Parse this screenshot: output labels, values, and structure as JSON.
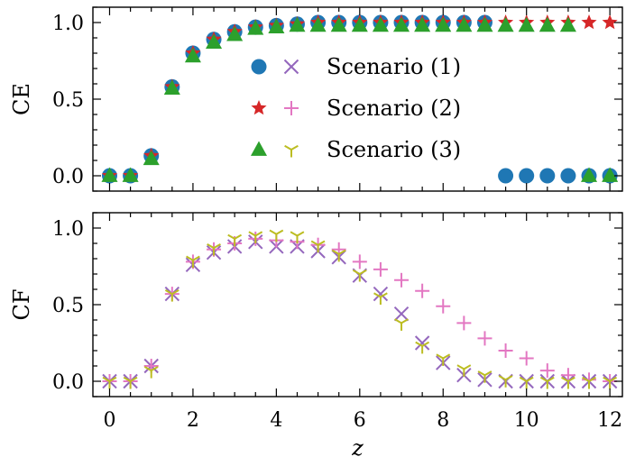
{
  "chart_data": [
    {
      "type": "scatter",
      "ylabel": "CE",
      "ylim": [
        -0.1,
        1.1
      ],
      "xlim": [
        -0.4,
        12.3
      ],
      "xticks": [
        0,
        2,
        4,
        6,
        8,
        10,
        12
      ],
      "yticks": [
        0.0,
        0.5,
        1.0
      ],
      "ytick_labels": [
        "0.0",
        "0.5",
        "1.0"
      ],
      "grid": false,
      "legend_position": "center",
      "series": [
        {
          "name": "Scenario (1)",
          "marker": "circle",
          "color": "#1f77b4",
          "x": [
            0,
            0.5,
            1,
            1.5,
            2,
            2.5,
            3,
            3.5,
            4,
            4.5,
            5,
            5.5,
            6,
            6.5,
            7,
            7.5,
            8,
            8.5,
            9,
            9.5,
            10,
            10.5,
            11,
            11.5,
            12
          ],
          "y": [
            0,
            0,
            0.13,
            0.58,
            0.8,
            0.89,
            0.94,
            0.97,
            0.98,
            0.99,
            1.0,
            1.0,
            1.0,
            1.0,
            1.0,
            1.0,
            1.0,
            1.0,
            1.0,
            0,
            0,
            0,
            0,
            0,
            0
          ]
        },
        {
          "name": "Scenario (2)",
          "marker": "star",
          "color": "#d62728",
          "x": [
            0,
            0.5,
            1,
            1.5,
            2,
            2.5,
            3,
            3.5,
            4,
            4.5,
            5,
            5.5,
            6,
            6.5,
            7,
            7.5,
            8,
            8.5,
            9,
            9.5,
            10,
            10.5,
            11,
            11.5,
            12
          ],
          "y": [
            0,
            0,
            0.13,
            0.58,
            0.8,
            0.89,
            0.94,
            0.97,
            0.98,
            0.99,
            1.0,
            1.0,
            1.0,
            1.0,
            1.0,
            1.0,
            1.0,
            1.0,
            1.0,
            1.0,
            1.0,
            1.0,
            1.0,
            1.0,
            1.0
          ]
        },
        {
          "name": "Scenario (3)",
          "marker": "triangle",
          "color": "#2ca02c",
          "x": [
            0,
            0.5,
            1,
            1.5,
            2,
            2.5,
            3,
            3.5,
            4,
            4.5,
            5,
            5.5,
            6,
            6.5,
            7,
            7.5,
            8,
            8.5,
            9,
            9.5,
            10,
            10.5,
            11,
            11.5,
            12
          ],
          "y": [
            0,
            0,
            0.11,
            0.57,
            0.78,
            0.87,
            0.92,
            0.96,
            0.97,
            0.98,
            0.98,
            0.98,
            0.98,
            0.98,
            0.98,
            0.98,
            0.98,
            0.98,
            0.98,
            0.98,
            0.98,
            0.98,
            0.98,
            0,
            0
          ]
        }
      ],
      "legend_entries": [
        {
          "label": "Scenario (1)",
          "marker1": "circle",
          "color1": "#1f77b4",
          "marker2": "x",
          "color2": "#9467bd"
        },
        {
          "label": "Scenario (2)",
          "marker1": "star",
          "color1": "#d62728",
          "marker2": "plus",
          "color2": "#e377c2"
        },
        {
          "label": "Scenario (3)",
          "marker1": "triangle",
          "color1": "#2ca02c",
          "marker2": "tri-down",
          "color2": "#bcbd22"
        }
      ]
    },
    {
      "type": "scatter",
      "ylabel": "CF",
      "xlabel": "z",
      "ylim": [
        -0.1,
        1.1
      ],
      "xlim": [
        -0.4,
        12.3
      ],
      "xticks": [
        0,
        2,
        4,
        6,
        8,
        10,
        12
      ],
      "xtick_labels": [
        "0",
        "2",
        "4",
        "6",
        "8",
        "10",
        "12"
      ],
      "yticks": [
        0.0,
        0.5,
        1.0
      ],
      "ytick_labels": [
        "0.0",
        "0.5",
        "1.0"
      ],
      "grid": false,
      "series": [
        {
          "name": "Scenario (1)",
          "marker": "x",
          "color": "#9467bd",
          "x": [
            0,
            0.5,
            1,
            1.5,
            2,
            2.5,
            3,
            3.5,
            4,
            4.5,
            5,
            5.5,
            6,
            6.5,
            7,
            7.5,
            8,
            8.5,
            9,
            9.5,
            10,
            10.5,
            11,
            11.5,
            12
          ],
          "y": [
            0,
            0,
            0.1,
            0.57,
            0.76,
            0.84,
            0.88,
            0.91,
            0.88,
            0.88,
            0.85,
            0.81,
            0.69,
            0.57,
            0.44,
            0.25,
            0.12,
            0.04,
            0.01,
            0,
            0,
            0,
            0,
            0,
            0
          ]
        },
        {
          "name": "Scenario (2)",
          "marker": "plus",
          "color": "#e377c2",
          "x": [
            0,
            0.5,
            1,
            1.5,
            2,
            2.5,
            3,
            3.5,
            4,
            4.5,
            5,
            5.5,
            6,
            6.5,
            7,
            7.5,
            8,
            8.5,
            9,
            9.5,
            10,
            10.5,
            11,
            11.5,
            12
          ],
          "y": [
            0,
            0,
            0.1,
            0.57,
            0.78,
            0.86,
            0.9,
            0.93,
            0.92,
            0.91,
            0.89,
            0.86,
            0.78,
            0.73,
            0.66,
            0.59,
            0.49,
            0.38,
            0.28,
            0.2,
            0.15,
            0.07,
            0.04,
            0.01,
            0
          ]
        },
        {
          "name": "Scenario (3)",
          "marker": "tri-down",
          "color": "#bcbd22",
          "x": [
            0,
            0.5,
            1,
            1.5,
            2,
            2.5,
            3,
            3.5,
            4,
            4.5,
            5,
            5.5,
            6,
            6.5,
            7,
            7.5,
            8,
            8.5,
            9,
            9.5,
            10,
            10.5,
            11,
            11.5,
            12
          ],
          "y": [
            0,
            0,
            0.07,
            0.57,
            0.79,
            0.87,
            0.93,
            0.95,
            0.96,
            0.95,
            0.89,
            0.83,
            0.7,
            0.55,
            0.38,
            0.23,
            0.15,
            0.08,
            0.04,
            0.01,
            0,
            0,
            0,
            0,
            0
          ]
        }
      ]
    }
  ]
}
